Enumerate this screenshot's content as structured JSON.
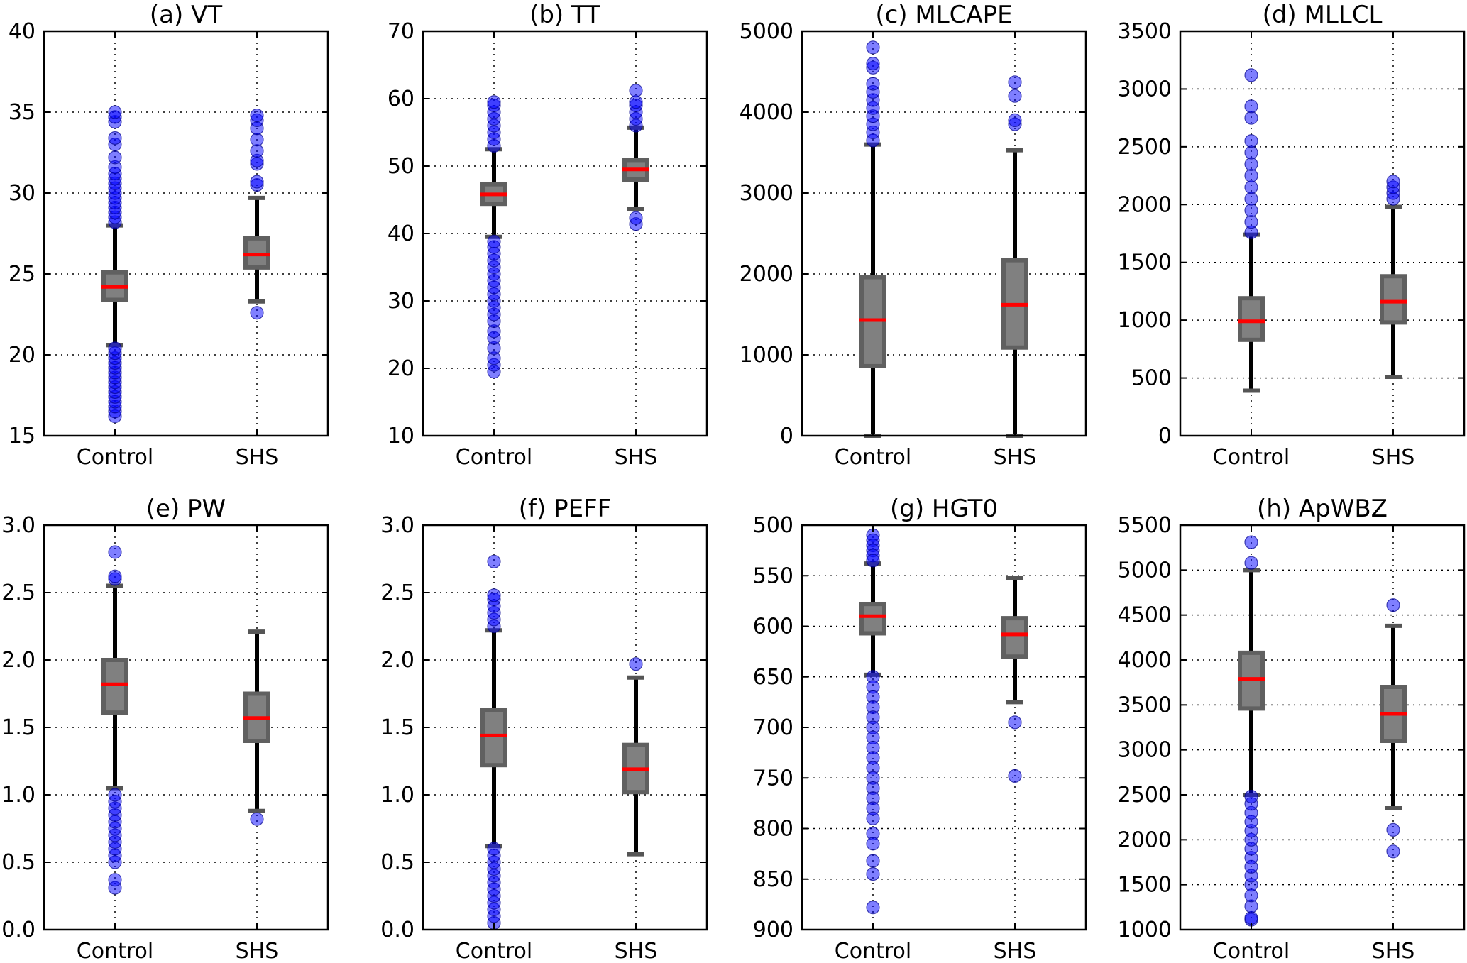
{
  "chart_data": [
    {
      "type": "box",
      "title": "(a) VT",
      "categories": [
        "Control",
        "SHS"
      ],
      "ylim": [
        15,
        40
      ],
      "yticks": [
        15,
        20,
        25,
        30,
        35,
        40
      ],
      "ytick_labels": [
        "15",
        "20",
        "25",
        "30",
        "35",
        "40"
      ],
      "inverted": false,
      "grid": true,
      "boxes": [
        {
          "category": "Control",
          "whisker_low": 20.6,
          "q1": 23.4,
          "median": 24.2,
          "q3": 25.1,
          "whisker_high": 28.0,
          "outliers": [
            16.2,
            16.5,
            16.8,
            17.1,
            17.4,
            17.7,
            18.0,
            18.3,
            18.6,
            18.9,
            19.2,
            19.5,
            19.8,
            20.1,
            20.4,
            28.2,
            28.5,
            28.8,
            29.1,
            29.4,
            29.7,
            30.0,
            30.3,
            30.6,
            30.9,
            31.2,
            31.6,
            32.2,
            33.0,
            33.4,
            34.4,
            34.7,
            35.0
          ]
        },
        {
          "category": "SHS",
          "whisker_low": 23.3,
          "q1": 25.4,
          "median": 26.2,
          "q3": 27.2,
          "whisker_high": 29.7,
          "outliers": [
            22.6,
            30.5,
            30.7,
            31.8,
            32.0,
            32.6,
            33.3,
            34.0,
            34.5,
            34.8
          ]
        }
      ]
    },
    {
      "type": "box",
      "title": "(b) TT",
      "categories": [
        "Control",
        "SHS"
      ],
      "ylim": [
        10,
        70
      ],
      "yticks": [
        10,
        20,
        30,
        40,
        50,
        60,
        70
      ],
      "ytick_labels": [
        "10",
        "20",
        "30",
        "40",
        "50",
        "60",
        "70"
      ],
      "inverted": false,
      "grid": true,
      "boxes": [
        {
          "category": "Control",
          "whisker_low": 39.5,
          "q1": 44.4,
          "median": 45.8,
          "q3": 47.3,
          "whisker_high": 52.5,
          "outliers": [
            19.5,
            20.5,
            21.5,
            23.0,
            24.5,
            25.5,
            27.0,
            28.0,
            29.0,
            30.0,
            31.0,
            32.0,
            33.0,
            34.0,
            35.0,
            36.0,
            37.0,
            38.0,
            38.8,
            53.0,
            54.0,
            55.0,
            56.0,
            57.0,
            58.0,
            59.0,
            59.5
          ]
        },
        {
          "category": "SHS",
          "whisker_low": 43.6,
          "q1": 48.0,
          "median": 49.5,
          "q3": 50.9,
          "whisker_high": 55.7,
          "outliers": [
            41.4,
            42.3,
            56.0,
            57.0,
            58.0,
            59.0,
            59.5,
            61.2
          ]
        }
      ]
    },
    {
      "type": "box",
      "title": "(c) MLCAPE",
      "categories": [
        "Control",
        "SHS"
      ],
      "ylim": [
        0,
        5000
      ],
      "yticks": [
        0,
        1000,
        2000,
        3000,
        4000,
        5000
      ],
      "ytick_labels": [
        "0",
        "1000",
        "2000",
        "3000",
        "4000",
        "5000"
      ],
      "inverted": false,
      "grid": true,
      "boxes": [
        {
          "category": "Control",
          "whisker_low": 0,
          "q1": 860,
          "median": 1430,
          "q3": 1960,
          "whisker_high": 3600,
          "outliers": [
            3650,
            3750,
            3850,
            3950,
            4050,
            4150,
            4250,
            4350,
            4550,
            4600,
            4800
          ]
        },
        {
          "category": "SHS",
          "whisker_low": 0,
          "q1": 1090,
          "median": 1620,
          "q3": 2170,
          "whisker_high": 3530,
          "outliers": [
            3850,
            3900,
            4200,
            4370
          ]
        }
      ]
    },
    {
      "type": "box",
      "title": "(d) MLLCL",
      "categories": [
        "Control",
        "SHS"
      ],
      "ylim": [
        0,
        3500
      ],
      "yticks": [
        0,
        500,
        1000,
        1500,
        2000,
        2500,
        3000,
        3500
      ],
      "ytick_labels": [
        "0",
        "500",
        "1000",
        "1500",
        "2000",
        "2500",
        "3000",
        "3500"
      ],
      "inverted": false,
      "grid": true,
      "boxes": [
        {
          "category": "Control",
          "whisker_low": 390,
          "q1": 830,
          "median": 990,
          "q3": 1190,
          "whisker_high": 1740,
          "outliers": [
            1760,
            1850,
            1950,
            2050,
            2150,
            2250,
            2350,
            2450,
            2550,
            2750,
            2850,
            3120
          ]
        },
        {
          "category": "SHS",
          "whisker_low": 510,
          "q1": 980,
          "median": 1160,
          "q3": 1380,
          "whisker_high": 1980,
          "outliers": [
            2050,
            2100,
            2150,
            2200
          ]
        }
      ]
    },
    {
      "type": "box",
      "title": "(e) PW",
      "categories": [
        "Control",
        "SHS"
      ],
      "ylim": [
        0.0,
        3.0
      ],
      "yticks": [
        0.0,
        0.5,
        1.0,
        1.5,
        2.0,
        2.5,
        3.0
      ],
      "ytick_labels": [
        "0.0",
        "0.5",
        "1.0",
        "1.5",
        "2.0",
        "2.5",
        "3.0"
      ],
      "inverted": false,
      "grid": true,
      "boxes": [
        {
          "category": "Control",
          "whisker_low": 1.05,
          "q1": 1.61,
          "median": 1.82,
          "q3": 2.0,
          "whisker_high": 2.55,
          "outliers": [
            0.31,
            0.37,
            0.5,
            0.55,
            0.6,
            0.65,
            0.7,
            0.75,
            0.8,
            0.85,
            0.9,
            0.95,
            1.0,
            2.6,
            2.62,
            2.8
          ]
        },
        {
          "category": "SHS",
          "whisker_low": 0.88,
          "q1": 1.4,
          "median": 1.57,
          "q3": 1.75,
          "whisker_high": 2.21,
          "outliers": [
            0.82
          ]
        }
      ]
    },
    {
      "type": "box",
      "title": "(f) PEFF",
      "categories": [
        "Control",
        "SHS"
      ],
      "ylim": [
        0.0,
        3.0
      ],
      "yticks": [
        0.0,
        0.5,
        1.0,
        1.5,
        2.0,
        2.5,
        3.0
      ],
      "ytick_labels": [
        "0.0",
        "0.5",
        "1.0",
        "1.5",
        "2.0",
        "2.5",
        "3.0"
      ],
      "inverted": false,
      "grid": true,
      "boxes": [
        {
          "category": "Control",
          "whisker_low": 0.62,
          "q1": 1.22,
          "median": 1.44,
          "q3": 1.63,
          "whisker_high": 2.22,
          "outliers": [
            0.05,
            0.1,
            0.15,
            0.2,
            0.25,
            0.3,
            0.35,
            0.4,
            0.45,
            0.5,
            0.55,
            0.6,
            2.25,
            2.3,
            2.35,
            2.4,
            2.45,
            2.48,
            2.73
          ]
        },
        {
          "category": "SHS",
          "whisker_low": 0.56,
          "q1": 1.02,
          "median": 1.19,
          "q3": 1.37,
          "whisker_high": 1.87,
          "outliers": [
            1.97
          ]
        }
      ]
    },
    {
      "type": "box",
      "title": "(g) HGT0",
      "categories": [
        "Control",
        "SHS"
      ],
      "ylim": [
        500,
        900
      ],
      "yticks": [
        500,
        550,
        600,
        650,
        700,
        750,
        800,
        850,
        900
      ],
      "ytick_labels": [
        "500",
        "550",
        "600",
        "650",
        "700",
        "750",
        "800",
        "850",
        "900"
      ],
      "inverted": true,
      "grid": true,
      "boxes": [
        {
          "category": "Control",
          "whisker_low": 538,
          "q1": 578,
          "median": 590,
          "q3": 607,
          "whisker_high": 648,
          "outliers": [
            510,
            515,
            520,
            525,
            530,
            535,
            650,
            660,
            670,
            680,
            690,
            700,
            710,
            720,
            730,
            740,
            750,
            760,
            770,
            780,
            790,
            805,
            815,
            832,
            845,
            878
          ]
        },
        {
          "category": "SHS",
          "whisker_low": 552,
          "q1": 592,
          "median": 608,
          "q3": 630,
          "whisker_high": 675,
          "outliers": [
            695,
            748
          ]
        }
      ]
    },
    {
      "type": "box",
      "title": "(h) ApWBZ",
      "categories": [
        "Control",
        "SHS"
      ],
      "ylim": [
        1000,
        5500
      ],
      "yticks": [
        1000,
        1500,
        2000,
        2500,
        3000,
        3500,
        4000,
        4500,
        5000,
        5500
      ],
      "ytick_labels": [
        "1000",
        "1500",
        "2000",
        "2500",
        "3000",
        "3500",
        "4000",
        "4500",
        "5000",
        "5500"
      ],
      "inverted": false,
      "grid": true,
      "boxes": [
        {
          "category": "Control",
          "whisker_low": 2500,
          "q1": 3460,
          "median": 3790,
          "q3": 4080,
          "whisker_high": 5000,
          "outliers": [
            1110,
            1130,
            1260,
            1380,
            1500,
            1600,
            1700,
            1800,
            1900,
            2000,
            2100,
            2200,
            2300,
            2400,
            2480,
            5080,
            5310
          ]
        },
        {
          "category": "SHS",
          "whisker_low": 2350,
          "q1": 3100,
          "median": 3400,
          "q3": 3700,
          "whisker_high": 4380,
          "outliers": [
            1870,
            2110,
            4610
          ]
        }
      ]
    }
  ],
  "colors": {
    "box_fill": "#808080",
    "box_edge": "#606060",
    "median": "#ff0000",
    "whisker": "#000000",
    "cap": "#555555",
    "outlier_fill": "#0000ff",
    "outlier_edge": "#00008b",
    "grid": "#000000",
    "axes": "#000000"
  }
}
